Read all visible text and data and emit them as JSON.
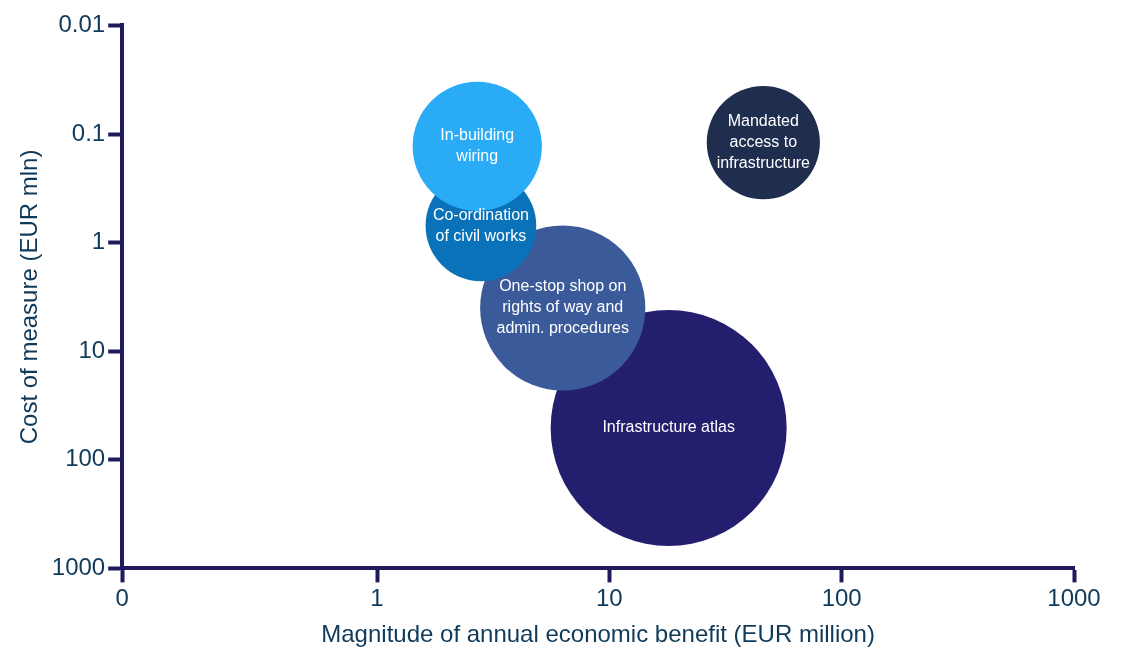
{
  "chart_data": {
    "type": "bubble",
    "xlabel": "Magnitude of annual economic benefit (EUR million)",
    "ylabel": "Cost of measure (EUR mln)",
    "log": "xy",
    "xlim": [
      0.08,
      1000
    ],
    "xticks": [
      {
        "value": 0.08,
        "label": "0"
      },
      1,
      10,
      100,
      1000
    ],
    "ylim": [
      1000,
      0.01
    ],
    "yticks": [
      0.01,
      0.1,
      1,
      10,
      100,
      1000
    ],
    "grid": false,
    "legend": false,
    "series": [
      {
        "name": "In-building wiring",
        "color": "#29abf5",
        "x": [
          2.7
        ],
        "values": [
          0.13
        ],
        "sizes": [
          0.3
        ]
      },
      {
        "name": "Mandated access to infrastructure",
        "color": "#1f2d4f",
        "x": [
          46
        ],
        "values": [
          0.12
        ],
        "sizes": [
          0.23
        ]
      },
      {
        "name": "Co-ordination of civil works",
        "color": "#0a72b8",
        "x": [
          2.8
        ],
        "values": [
          0.7
        ],
        "sizes": [
          0.22
        ]
      },
      {
        "name": "One-stop shop on rights of way and admin. procedures",
        "color": "#3b5a9a",
        "x": [
          6.3
        ],
        "values": [
          4
        ],
        "sizes": [
          0.49
        ]
      },
      {
        "name": "Infrastructure atlas",
        "color": "#231f6e",
        "x": [
          18
        ],
        "values": [
          51
        ],
        "sizes": [
          1
        ]
      }
    ]
  }
}
